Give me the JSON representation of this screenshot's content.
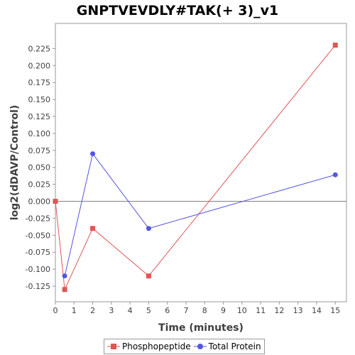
{
  "chart_data": {
    "type": "line",
    "title": "GNPTVEVDLY#TAK(+ 3)_v1",
    "xlabel": "Time (minutes)",
    "ylabel": "log2(dDAVP/Control)",
    "xlim": [
      0,
      15.6
    ],
    "ylim": [
      -0.148,
      0.262
    ],
    "x_ticks": [
      0,
      1,
      2,
      3,
      4,
      5,
      6,
      7,
      8,
      9,
      10,
      11,
      12,
      13,
      14,
      15
    ],
    "y_ticks": [
      -0.125,
      -0.1,
      -0.075,
      -0.05,
      -0.025,
      0.0,
      0.025,
      0.05,
      0.075,
      0.1,
      0.125,
      0.15,
      0.175,
      0.2,
      0.225
    ],
    "y_tick_labels": [
      "-0.125",
      "-0.100",
      "-0.075",
      "-0.050",
      "-0.025",
      "0.000",
      "0.025",
      "0.050",
      "0.075",
      "0.100",
      "0.125",
      "0.150",
      "0.175",
      "0.200",
      "0.225"
    ],
    "grid": false,
    "zero_line": true,
    "legend_position": "bottom",
    "series": [
      {
        "name": "Phosphopeptide",
        "color": "#e05555",
        "marker": "square",
        "x": [
          0,
          0.5,
          2,
          5,
          15
        ],
        "y": [
          0.0,
          -0.13,
          -0.04,
          -0.11,
          0.23
        ]
      },
      {
        "name": "Total Protein",
        "color": "#5555e0",
        "marker": "circle",
        "x": [
          0.5,
          2,
          5,
          15
        ],
        "y": [
          -0.11,
          0.07,
          -0.04,
          0.039
        ]
      }
    ]
  }
}
